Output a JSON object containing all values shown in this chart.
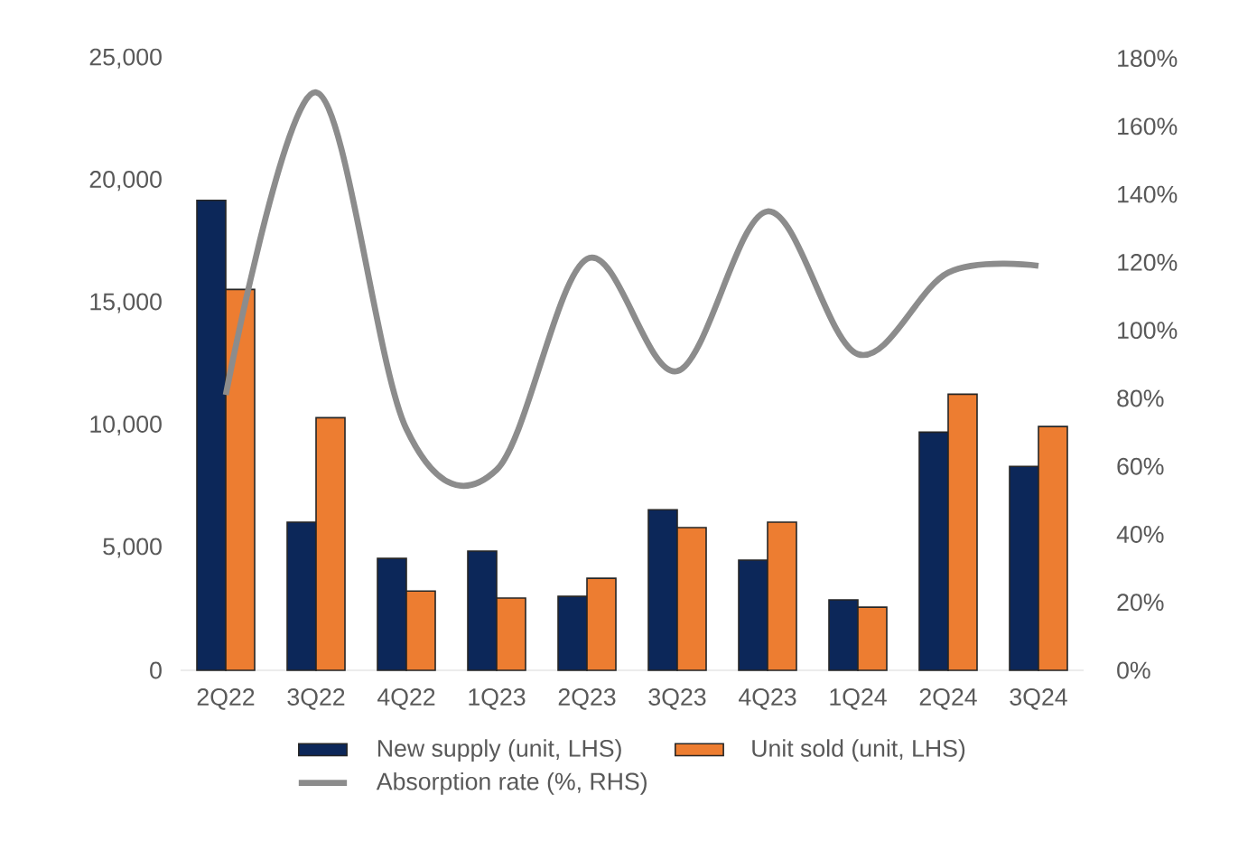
{
  "chart_data": {
    "type": "bar",
    "categories": [
      "2Q22",
      "3Q22",
      "4Q22",
      "1Q23",
      "2Q23",
      "3Q23",
      "4Q23",
      "1Q24",
      "2Q24",
      "3Q24"
    ],
    "series": [
      {
        "name": "New supply (unit, LHS)",
        "color": "#0c2759",
        "values": [
          19200,
          6050,
          4570,
          4870,
          3020,
          6560,
          4500,
          2880,
          9730,
          8330
        ]
      },
      {
        "name": "Unit sold (unit, LHS)",
        "color": "#ed7d31",
        "values": [
          15560,
          10320,
          3240,
          2950,
          3760,
          5830,
          6050,
          2580,
          11280,
          9960
        ]
      },
      {
        "name": "Absorption rate (%, RHS)",
        "type": "line",
        "axis": "y2",
        "color": "#8c8c8c",
        "values": [
          81,
          170,
          71,
          59,
          121,
          88,
          135,
          93,
          117,
          119
        ]
      }
    ],
    "ylim": [
      0,
      25000
    ],
    "yticks": [
      0,
      {
        "value": 5000,
        "label": "5,000"
      },
      {
        "value": 10000,
        "label": "10,000"
      },
      {
        "value": 15000,
        "label": "15,000"
      },
      {
        "value": 20000,
        "label": "20,000"
      },
      {
        "value": 25000,
        "label": "25,000"
      }
    ],
    "y2lim": [
      0,
      180
    ],
    "y2ticks": [
      {
        "value": 0,
        "label": "0%"
      },
      {
        "value": 20,
        "label": "20%"
      },
      {
        "value": 40,
        "label": "40%"
      },
      {
        "value": 60,
        "label": "60%"
      },
      {
        "value": 80,
        "label": "80%"
      },
      {
        "value": 100,
        "label": "100%"
      },
      {
        "value": 120,
        "label": "120%"
      },
      {
        "value": 140,
        "label": "140%"
      },
      {
        "value": 160,
        "label": "160%"
      },
      {
        "value": 180,
        "label": "180%"
      }
    ],
    "legend": "bottom"
  }
}
